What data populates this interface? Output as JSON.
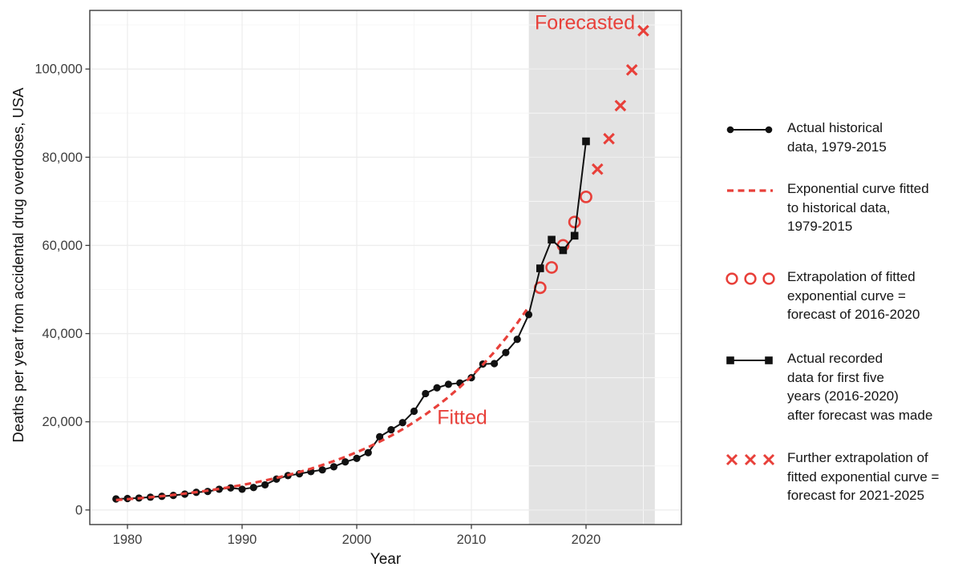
{
  "colors": {
    "red": "#e8403a",
    "black": "#111111",
    "band": "#e3e3e3",
    "grid_major": "#ededed",
    "grid_minor": "#f6f6f6",
    "panel_border": "#3a3a3a",
    "tick_label": "#3d3d3d"
  },
  "chart_data": {
    "type": "line",
    "title": "",
    "xlabel": "Year",
    "ylabel": "Deaths per year from accidental drug overdoses, USA",
    "x_ticks": [
      1980,
      1990,
      2000,
      2010,
      2020
    ],
    "x_minor_ticks": [
      1985,
      1995,
      2005,
      2015,
      2025
    ],
    "y_ticks": [
      {
        "value": 0,
        "label": "0"
      },
      {
        "value": 20000,
        "label": "20,000"
      },
      {
        "value": 40000,
        "label": "40,000"
      },
      {
        "value": 60000,
        "label": "60,000"
      },
      {
        "value": 80000,
        "label": "80,000"
      },
      {
        "value": 100000,
        "label": "100,000"
      }
    ],
    "y_minor_ticks": [
      10000,
      30000,
      50000,
      70000,
      90000,
      110000
    ],
    "xlim": [
      1976.7,
      2028.3
    ],
    "ylim": [
      -3300,
      113300
    ],
    "grid": true,
    "legend_position": "right",
    "shaded_region": {
      "from_year": 2015,
      "to_year": 2026
    },
    "annotations": {
      "forecasted": {
        "text": "Forecasted",
        "x": 2019.9,
        "y": 110400
      },
      "fitted": {
        "text": "Fitted",
        "x": 2009.2,
        "y": 20800
      }
    },
    "series": [
      {
        "name": "Actual historical data, 1979-2015",
        "style": "solid-line-dots",
        "color": "black",
        "year_start": 1979,
        "year_end": 2015,
        "values": [
          2500,
          2600,
          2700,
          2900,
          3100,
          3300,
          3600,
          4000,
          4200,
          4700,
          5000,
          4700,
          5100,
          5700,
          7000,
          7800,
          8200,
          8700,
          9100,
          9800,
          10900,
          11700,
          13000,
          16600,
          18200,
          19800,
          22400,
          26400,
          27700,
          28500,
          28800,
          30000,
          33100,
          33200,
          35700,
          38700,
          44300
        ]
      },
      {
        "name": "Exponential curve fitted to historical data, 1979-2015",
        "style": "dashed-line",
        "color": "red",
        "year_start": 1979,
        "year_end": 2015,
        "values": [
          2250,
          2450,
          2660,
          2890,
          3150,
          3420,
          3720,
          4050,
          4400,
          4790,
          5210,
          5660,
          6160,
          6690,
          7280,
          7920,
          8610,
          9360,
          10180,
          11070,
          12040,
          13090,
          14240,
          15490,
          16840,
          18310,
          19920,
          21660,
          23550,
          25610,
          27860,
          30290,
          32940,
          35830,
          38960,
          42370,
          46080
        ]
      },
      {
        "name": "Extrapolation of fitted exponential curve = forecast of 2016-2020",
        "style": "open-circles",
        "color": "red",
        "year_start": 2016,
        "year_end": 2020,
        "values": [
          50400,
          55000,
          60000,
          65300,
          71000
        ]
      },
      {
        "name": "Actual recorded data for first five years (2016-2020) after forecast was made",
        "style": "solid-line-squares",
        "color": "black",
        "year_start": 2016,
        "year_end": 2020,
        "connect_from": {
          "year": 2015,
          "value": 44300
        },
        "values": [
          54800,
          61300,
          58900,
          62200,
          83600
        ]
      },
      {
        "name": "Further extrapolation of fitted exponential curve = forecast for 2021-2025",
        "style": "x-marks",
        "color": "red",
        "year_start": 2021,
        "year_end": 2025,
        "values": [
          77300,
          84200,
          91700,
          99800,
          108700
        ]
      }
    ]
  },
  "legend": {
    "items": [
      {
        "symbol": "dot-line",
        "color": "black",
        "lines": [
          "Actual historical",
          "data, 1979-2015"
        ]
      },
      {
        "symbol": "dashed-line",
        "color": "red",
        "lines": [
          "Exponential curve fitted",
          "to historical data,",
          "1979-2015"
        ]
      },
      {
        "symbol": "open-circles",
        "color": "red",
        "lines": [
          "Extrapolation of fitted",
          "exponential curve =",
          "forecast of 2016-2020"
        ]
      },
      {
        "symbol": "square-line",
        "color": "black",
        "lines": [
          "Actual recorded",
          "data for first five",
          "years (2016-2020)",
          "after forecast was made"
        ]
      },
      {
        "symbol": "x-marks",
        "color": "red",
        "lines": [
          "Further extrapolation of",
          "fitted exponential curve =",
          "forecast for 2021-2025"
        ]
      }
    ],
    "item_tops": [
      148,
      224,
      334,
      436,
      560
    ]
  }
}
